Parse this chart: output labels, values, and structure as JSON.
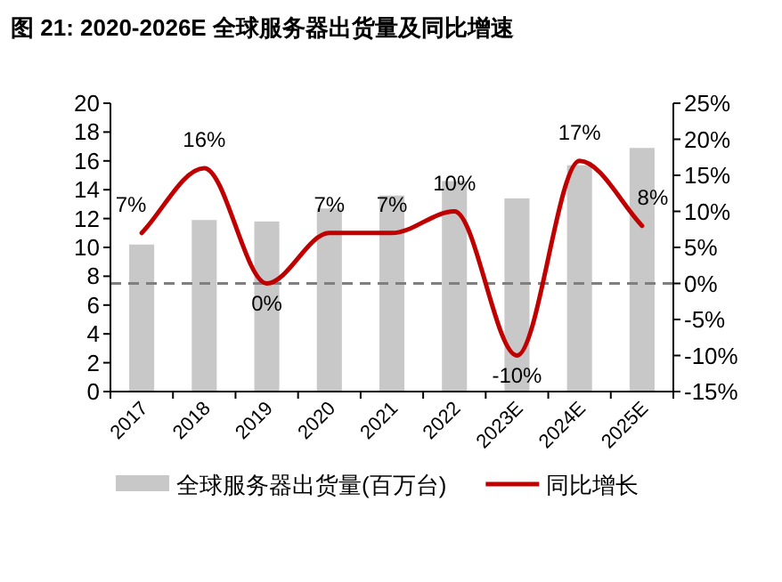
{
  "chart_data": {
    "type": "bar",
    "title": "图 21: 2020-2026E 全球服务器出货量及同比增速",
    "categories": [
      "2017",
      "2018",
      "2019",
      "2020",
      "2021",
      "2022",
      "2023E",
      "2024E",
      "2025E"
    ],
    "series": [
      {
        "name": "全球服务器出货量(百万台)",
        "color": "#c8c8c8",
        "values": [
          10.2,
          11.9,
          11.8,
          12.7,
          13.6,
          14.6,
          13.4,
          15.7,
          16.9
        ]
      },
      {
        "name": "同比增长",
        "type": "line",
        "color": "#c00000",
        "axis": "y2",
        "values": [
          7,
          16,
          0,
          7,
          7,
          10,
          -10,
          17,
          8
        ],
        "value_labels": [
          "7%",
          "16%",
          "0%",
          "7%",
          "7%",
          "10%",
          "-10%",
          "17%",
          "8%"
        ]
      }
    ],
    "ylim": [
      0,
      20
    ],
    "yticks": [
      0,
      2,
      4,
      6,
      8,
      10,
      12,
      14,
      16,
      18,
      20
    ],
    "y2lim": [
      -15,
      25
    ],
    "y2ticks": [
      {
        "value": -15,
        "label": "-15%"
      },
      {
        "value": -10,
        "label": "-10%"
      },
      {
        "value": -5,
        "label": "-5%"
      },
      {
        "value": 0,
        "label": "0%"
      },
      {
        "value": 5,
        "label": "5%"
      },
      {
        "value": 10,
        "label": "10%"
      },
      {
        "value": 15,
        "label": "15%"
      },
      {
        "value": 20,
        "label": "20%"
      },
      {
        "value": 25,
        "label": "25%"
      }
    ],
    "ref_lines": [
      {
        "axis": "y2",
        "value": 0,
        "color": "#7f7f7f",
        "line_style": "dashed"
      }
    ],
    "legend": "bottom"
  }
}
